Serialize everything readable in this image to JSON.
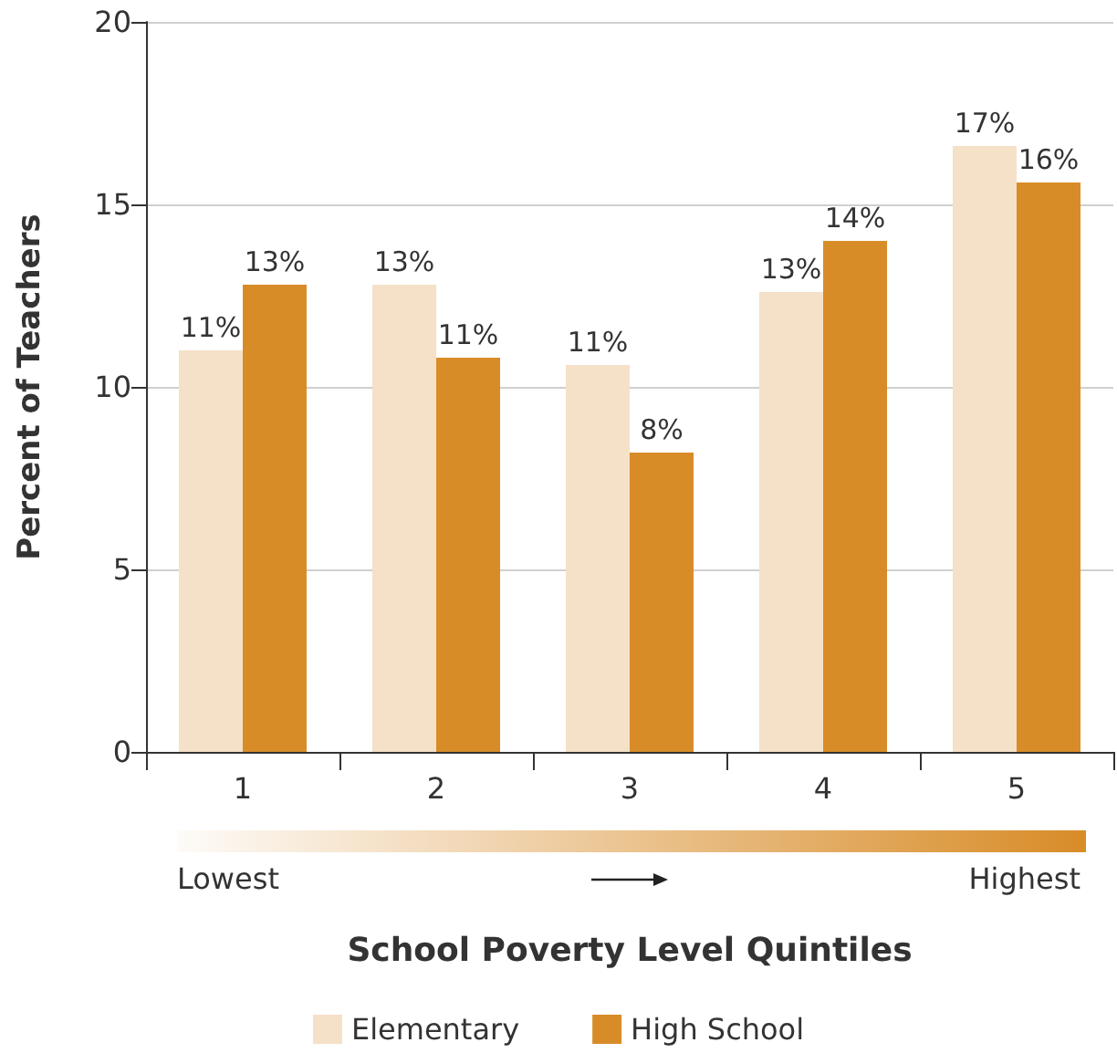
{
  "chart_data": {
    "type": "bar",
    "xlabel": "School Poverty Level Quintiles",
    "ylabel": "Percent of Teachers",
    "categories": [
      "1",
      "2",
      "3",
      "4",
      "5"
    ],
    "series": [
      {
        "name": "Elementary",
        "color": "#f5e1c8",
        "values": [
          11.0,
          12.8,
          10.6,
          12.6,
          16.6
        ],
        "value_labels": [
          "11%",
          "13%",
          "11%",
          "13%",
          "17%"
        ]
      },
      {
        "name": "High School",
        "color": "#d88c28",
        "values": [
          12.8,
          10.8,
          8.2,
          14.0,
          15.6
        ],
        "value_labels": [
          "13%",
          "11%",
          "8%",
          "14%",
          "16%"
        ]
      }
    ],
    "ylim": [
      0,
      20
    ],
    "yticks": [
      0,
      5,
      10,
      15,
      20
    ],
    "grid": "y",
    "legend": "bottom",
    "annotations": [
      "Lowest",
      "Highest"
    ]
  }
}
